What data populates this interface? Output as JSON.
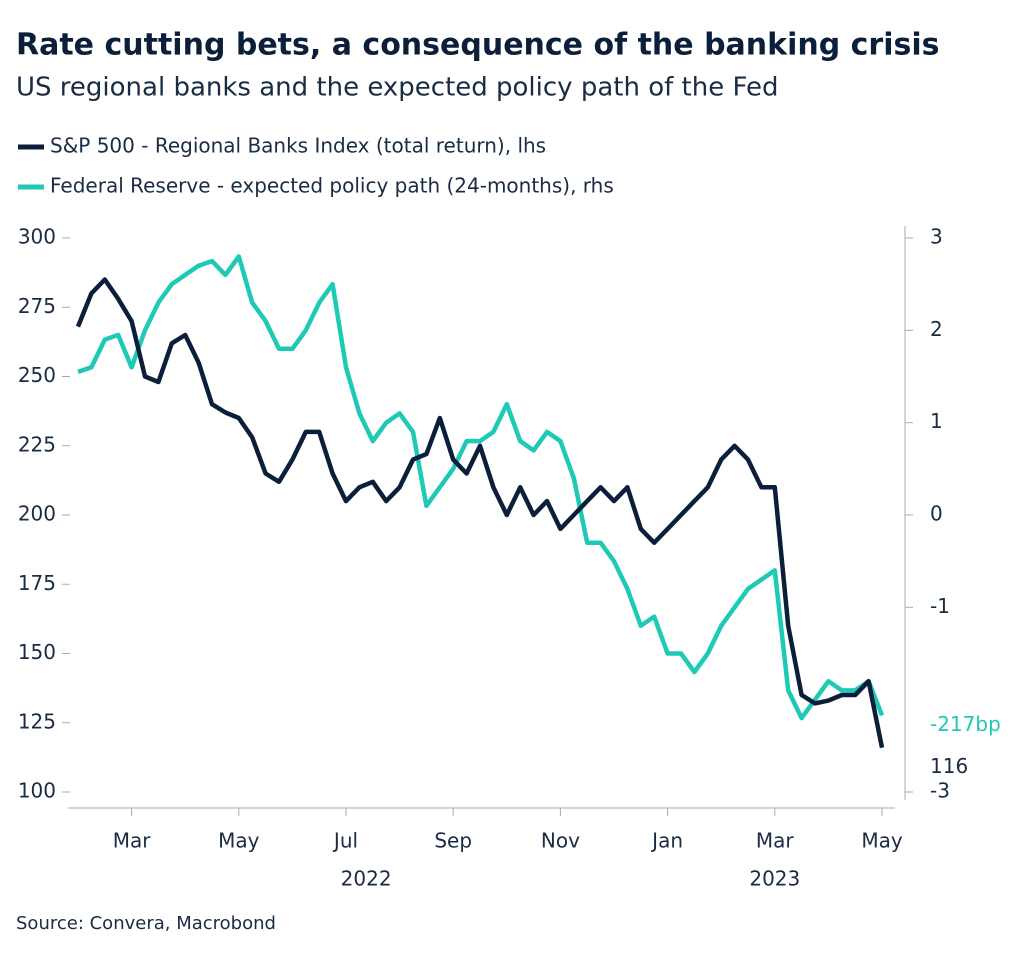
{
  "chart_data": {
    "type": "line",
    "title": "Rate cutting bets, a consequence of the banking crisis",
    "subtitle": "US regional banks and the expected policy path of the Fed",
    "source": "Source: Convera, Macrobond",
    "x": [
      "2022-02",
      "2022-02",
      "2022-02",
      "2022-02",
      "2022-03",
      "2022-03",
      "2022-03",
      "2022-03",
      "2022-04",
      "2022-04",
      "2022-04",
      "2022-04",
      "2022-05",
      "2022-05",
      "2022-05",
      "2022-05",
      "2022-06",
      "2022-06",
      "2022-06",
      "2022-06",
      "2022-07",
      "2022-07",
      "2022-07",
      "2022-07",
      "2022-08",
      "2022-08",
      "2022-08",
      "2022-08",
      "2022-09",
      "2022-09",
      "2022-09",
      "2022-09",
      "2022-10",
      "2022-10",
      "2022-10",
      "2022-10",
      "2022-11",
      "2022-11",
      "2022-11",
      "2022-11",
      "2022-12",
      "2022-12",
      "2022-12",
      "2022-12",
      "2023-01",
      "2023-01",
      "2023-01",
      "2023-01",
      "2023-02",
      "2023-02",
      "2023-02",
      "2023-02",
      "2023-03",
      "2023-03",
      "2023-03",
      "2023-03",
      "2023-04",
      "2023-04",
      "2023-04",
      "2023-04",
      "2023-05"
    ],
    "series": [
      {
        "name": "S&P 500 - Regional Banks Index (total return), lhs",
        "color": "#0b1f3a",
        "axis": "y",
        "values": [
          268,
          280,
          285,
          278,
          270,
          250,
          248,
          262,
          265,
          255,
          240,
          237,
          235,
          228,
          215,
          212,
          220,
          230,
          230,
          215,
          205,
          210,
          212,
          205,
          210,
          220,
          222,
          235,
          220,
          215,
          225,
          210,
          200,
          210,
          200,
          205,
          195,
          200,
          205,
          210,
          205,
          210,
          195,
          190,
          195,
          200,
          205,
          210,
          220,
          225,
          220,
          210,
          210,
          160,
          135,
          132,
          133,
          135,
          135,
          140,
          116
        ]
      },
      {
        "name": "Federal Reserve - expected policy path (24-months), rhs",
        "color": "#1ec9b5",
        "axis": "y2",
        "values": [
          1.55,
          1.6,
          1.9,
          1.95,
          1.6,
          2.0,
          2.3,
          2.5,
          2.6,
          2.7,
          2.75,
          2.6,
          2.8,
          2.3,
          2.1,
          1.8,
          1.8,
          2.0,
          2.3,
          2.5,
          1.6,
          1.1,
          0.8,
          1.0,
          1.1,
          0.9,
          0.1,
          0.3,
          0.5,
          0.8,
          0.8,
          0.9,
          1.2,
          0.8,
          0.7,
          0.9,
          0.8,
          0.4,
          -0.3,
          -0.3,
          -0.5,
          -0.8,
          -1.2,
          -1.1,
          -1.5,
          -1.5,
          -1.7,
          -1.5,
          -1.2,
          -1.0,
          -0.8,
          -0.7,
          -0.6,
          -1.9,
          -2.2,
          -2.0,
          -1.8,
          -1.9,
          -1.9,
          -1.8,
          -2.17
        ],
        "value_labels": [
          null,
          null,
          null,
          null,
          null,
          null,
          null,
          null,
          null,
          null,
          null,
          null,
          null,
          null,
          null,
          null,
          null,
          null,
          null,
          null,
          null,
          null,
          null,
          null,
          null,
          null,
          null,
          null,
          null,
          null,
          null,
          null,
          null,
          null,
          null,
          null,
          null,
          null,
          null,
          null,
          null,
          null,
          null,
          null,
          null,
          null,
          null,
          null,
          null,
          null,
          null,
          null,
          null,
          null,
          null,
          null,
          null,
          null,
          null,
          null,
          "-217bp"
        ]
      }
    ],
    "xticks": [
      {
        "value": "2022-03",
        "label": "Mar"
      },
      {
        "value": "2022-05",
        "label": "May"
      },
      {
        "value": "2022-07",
        "label": "Jul"
      },
      {
        "value": "2022-09",
        "label": "Sep"
      },
      {
        "value": "2022-11",
        "label": "Nov"
      },
      {
        "value": "2023-01",
        "label": "Jan"
      },
      {
        "value": "2023-03",
        "label": "Mar"
      },
      {
        "value": "2023-05",
        "label": "May"
      }
    ],
    "years": [
      "2022",
      "2023"
    ],
    "ylim": [
      100,
      300
    ],
    "yticks": [
      100,
      125,
      150,
      175,
      200,
      225,
      250,
      275,
      300
    ],
    "y2lim": [
      -3,
      3
    ],
    "y2ticks": [
      -3,
      -1,
      0,
      1,
      2,
      3
    ]
  }
}
